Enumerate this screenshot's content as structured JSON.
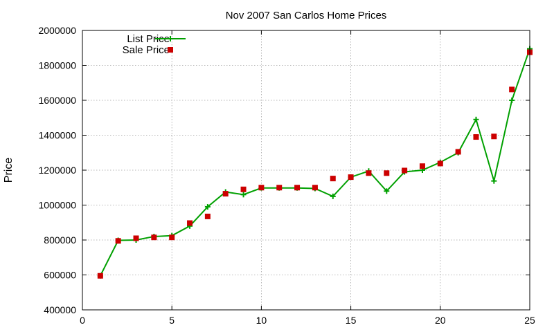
{
  "chart_data": {
    "type": "line",
    "title": "Nov 2007 San Carlos Home Prices",
    "xlabel": "",
    "ylabel": "Price",
    "xlim": [
      0,
      25
    ],
    "ylim": [
      400000,
      2000000
    ],
    "xticks": [
      0,
      5,
      10,
      15,
      20,
      25
    ],
    "yticks": [
      400000,
      600000,
      800000,
      1000000,
      1200000,
      1400000,
      1600000,
      1800000,
      2000000
    ],
    "grid": true,
    "legend_position": "top-left",
    "series": [
      {
        "name": "List Price",
        "style": "line+cross",
        "color": "#00a000",
        "x": [
          1,
          2,
          3,
          4,
          5,
          6,
          7,
          8,
          9,
          10,
          11,
          12,
          13,
          14,
          15,
          16,
          17,
          18,
          19,
          20,
          21,
          22,
          23,
          24,
          25
        ],
        "y": [
          595000,
          798000,
          800000,
          820000,
          825000,
          880000,
          990000,
          1075000,
          1060000,
          1098000,
          1098000,
          1098000,
          1095000,
          1050000,
          1160000,
          1195000,
          1080000,
          1190000,
          1200000,
          1245000,
          1300000,
          1490000,
          1138000,
          1600000,
          1895000
        ]
      },
      {
        "name": "Sale Price",
        "style": "square",
        "color": "#cc0000",
        "x": [
          1,
          2,
          3,
          4,
          5,
          6,
          7,
          8,
          9,
          10,
          11,
          12,
          13,
          14,
          15,
          16,
          17,
          18,
          19,
          20,
          21,
          22,
          23,
          24,
          25
        ],
        "y": [
          595000,
          795000,
          810000,
          815000,
          815000,
          897000,
          935000,
          1065000,
          1090000,
          1100000,
          1100000,
          1100000,
          1100000,
          1152000,
          1160000,
          1183000,
          1183000,
          1198000,
          1223000,
          1238000,
          1305000,
          1390000,
          1393000,
          1662000,
          1875000
        ]
      }
    ]
  }
}
